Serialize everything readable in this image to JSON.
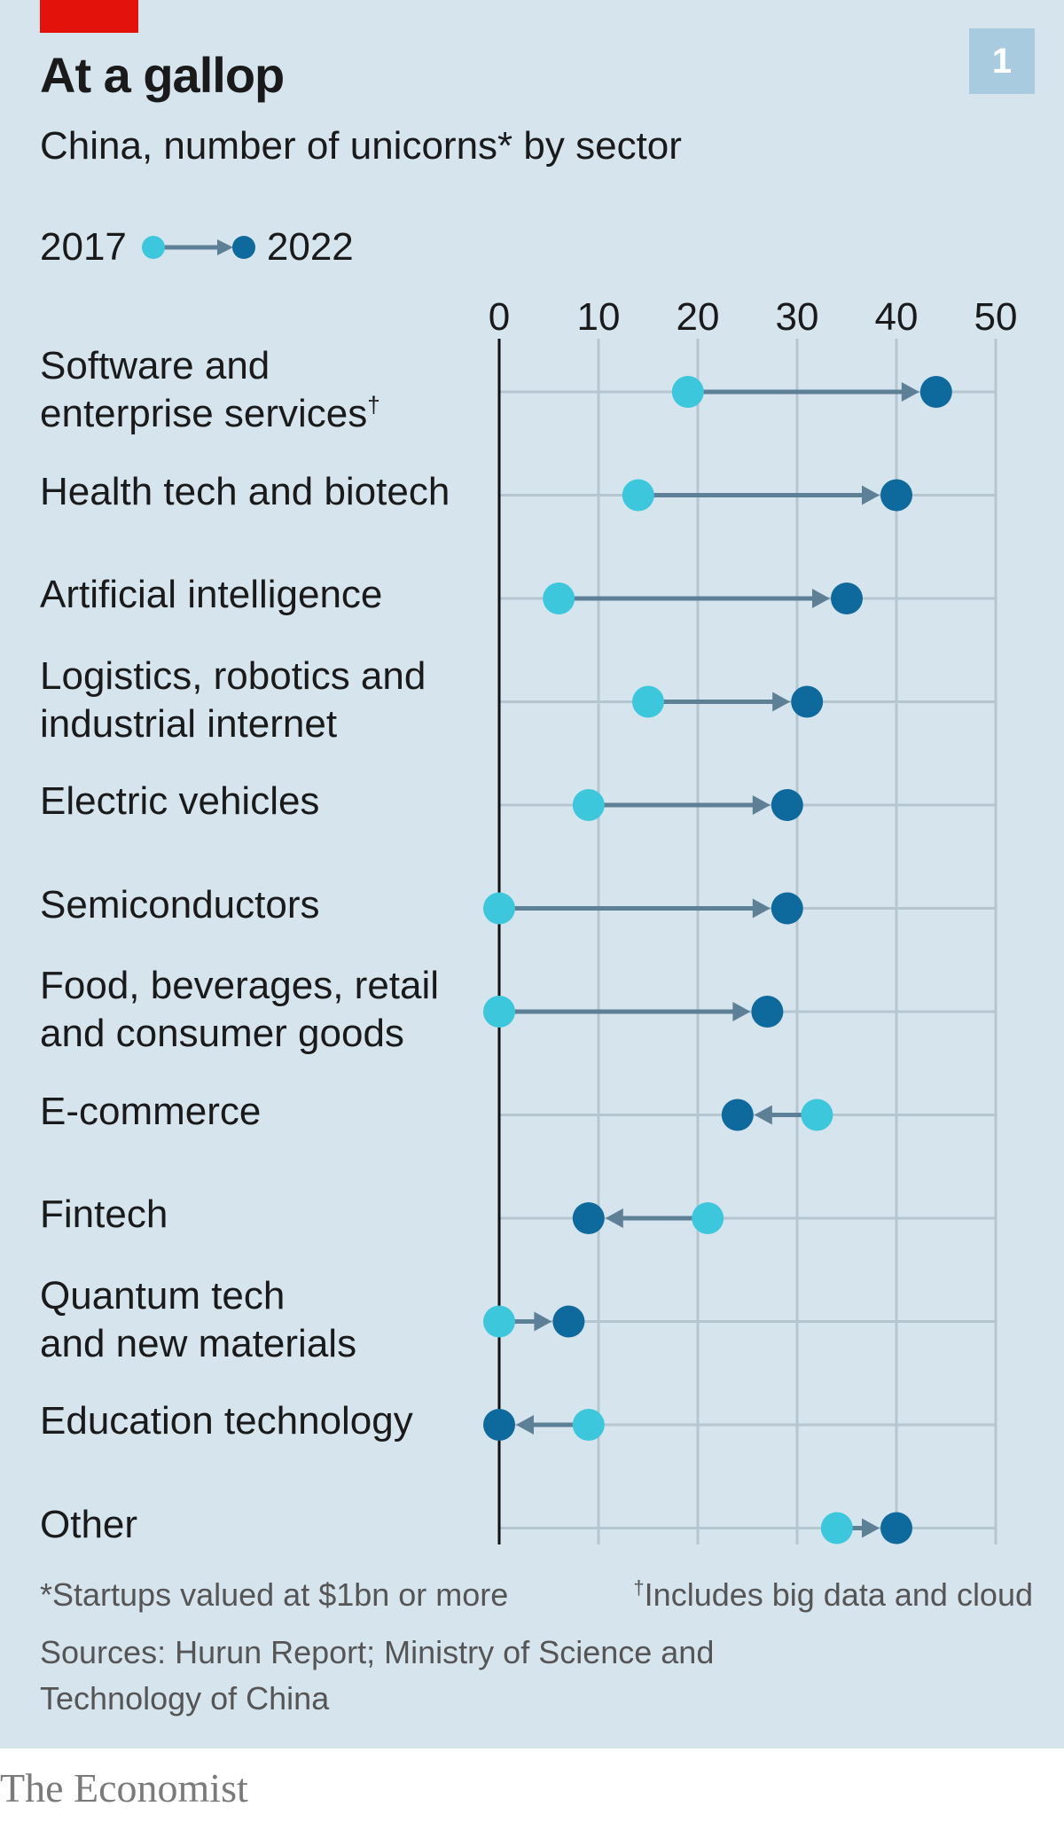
{
  "chart_number": "1",
  "title": "At a gallop",
  "subtitle": "China, number of unicorns* by sector",
  "legend": {
    "from_label": "2017",
    "to_label": "2022"
  },
  "colors": {
    "background": "#d6e4ee",
    "accent_red": "#e3120b",
    "y2017": "#3cc7dc",
    "y2022": "#0e6a9c",
    "arrow": "#5e8096",
    "grid": "#b5c6d1",
    "axis": "#111111"
  },
  "footnotes": {
    "star": "*Startups valued at $1bn or more",
    "dagger_mark": "†",
    "dagger": "Includes big data and cloud"
  },
  "source": "Sources: Hurun Report; Ministry of Science and Technology of China",
  "brand": "The Economist",
  "chart_data": {
    "type": "dumbbell-arrow",
    "xlim": [
      0,
      50
    ],
    "xticks": [
      0,
      10,
      20,
      30,
      40,
      50
    ],
    "grid": true,
    "legend_position": "top-left",
    "series": [
      {
        "name": "2017",
        "color": "#3cc7dc"
      },
      {
        "name": "2022",
        "color": "#0e6a9c"
      }
    ],
    "rows": [
      {
        "label": [
          "Software and",
          "enterprise services"
        ],
        "dagger": "†",
        "v2017": 19,
        "v2022": 44
      },
      {
        "label": [
          "Health tech and biotech"
        ],
        "v2017": 14,
        "v2022": 40
      },
      {
        "label": [
          "Artificial intelligence"
        ],
        "v2017": 6,
        "v2022": 35
      },
      {
        "label": [
          "Logistics, robotics and",
          "industrial internet"
        ],
        "v2017": 15,
        "v2022": 31
      },
      {
        "label": [
          "Electric vehicles"
        ],
        "v2017": 9,
        "v2022": 29
      },
      {
        "label": [
          "Semiconductors"
        ],
        "v2017": 0,
        "v2022": 29
      },
      {
        "label": [
          "Food, beverages, retail",
          "and consumer goods"
        ],
        "v2017": 0,
        "v2022": 27
      },
      {
        "label": [
          "E-commerce"
        ],
        "v2017": 32,
        "v2022": 24
      },
      {
        "label": [
          "Fintech"
        ],
        "v2017": 21,
        "v2022": 9
      },
      {
        "label": [
          "Quantum tech",
          "and new materials"
        ],
        "v2017": 0,
        "v2022": 7
      },
      {
        "label": [
          "Education technology"
        ],
        "v2017": 9,
        "v2022": 0
      },
      {
        "label": [
          "Other"
        ],
        "v2017": 34,
        "v2022": 40
      }
    ]
  }
}
